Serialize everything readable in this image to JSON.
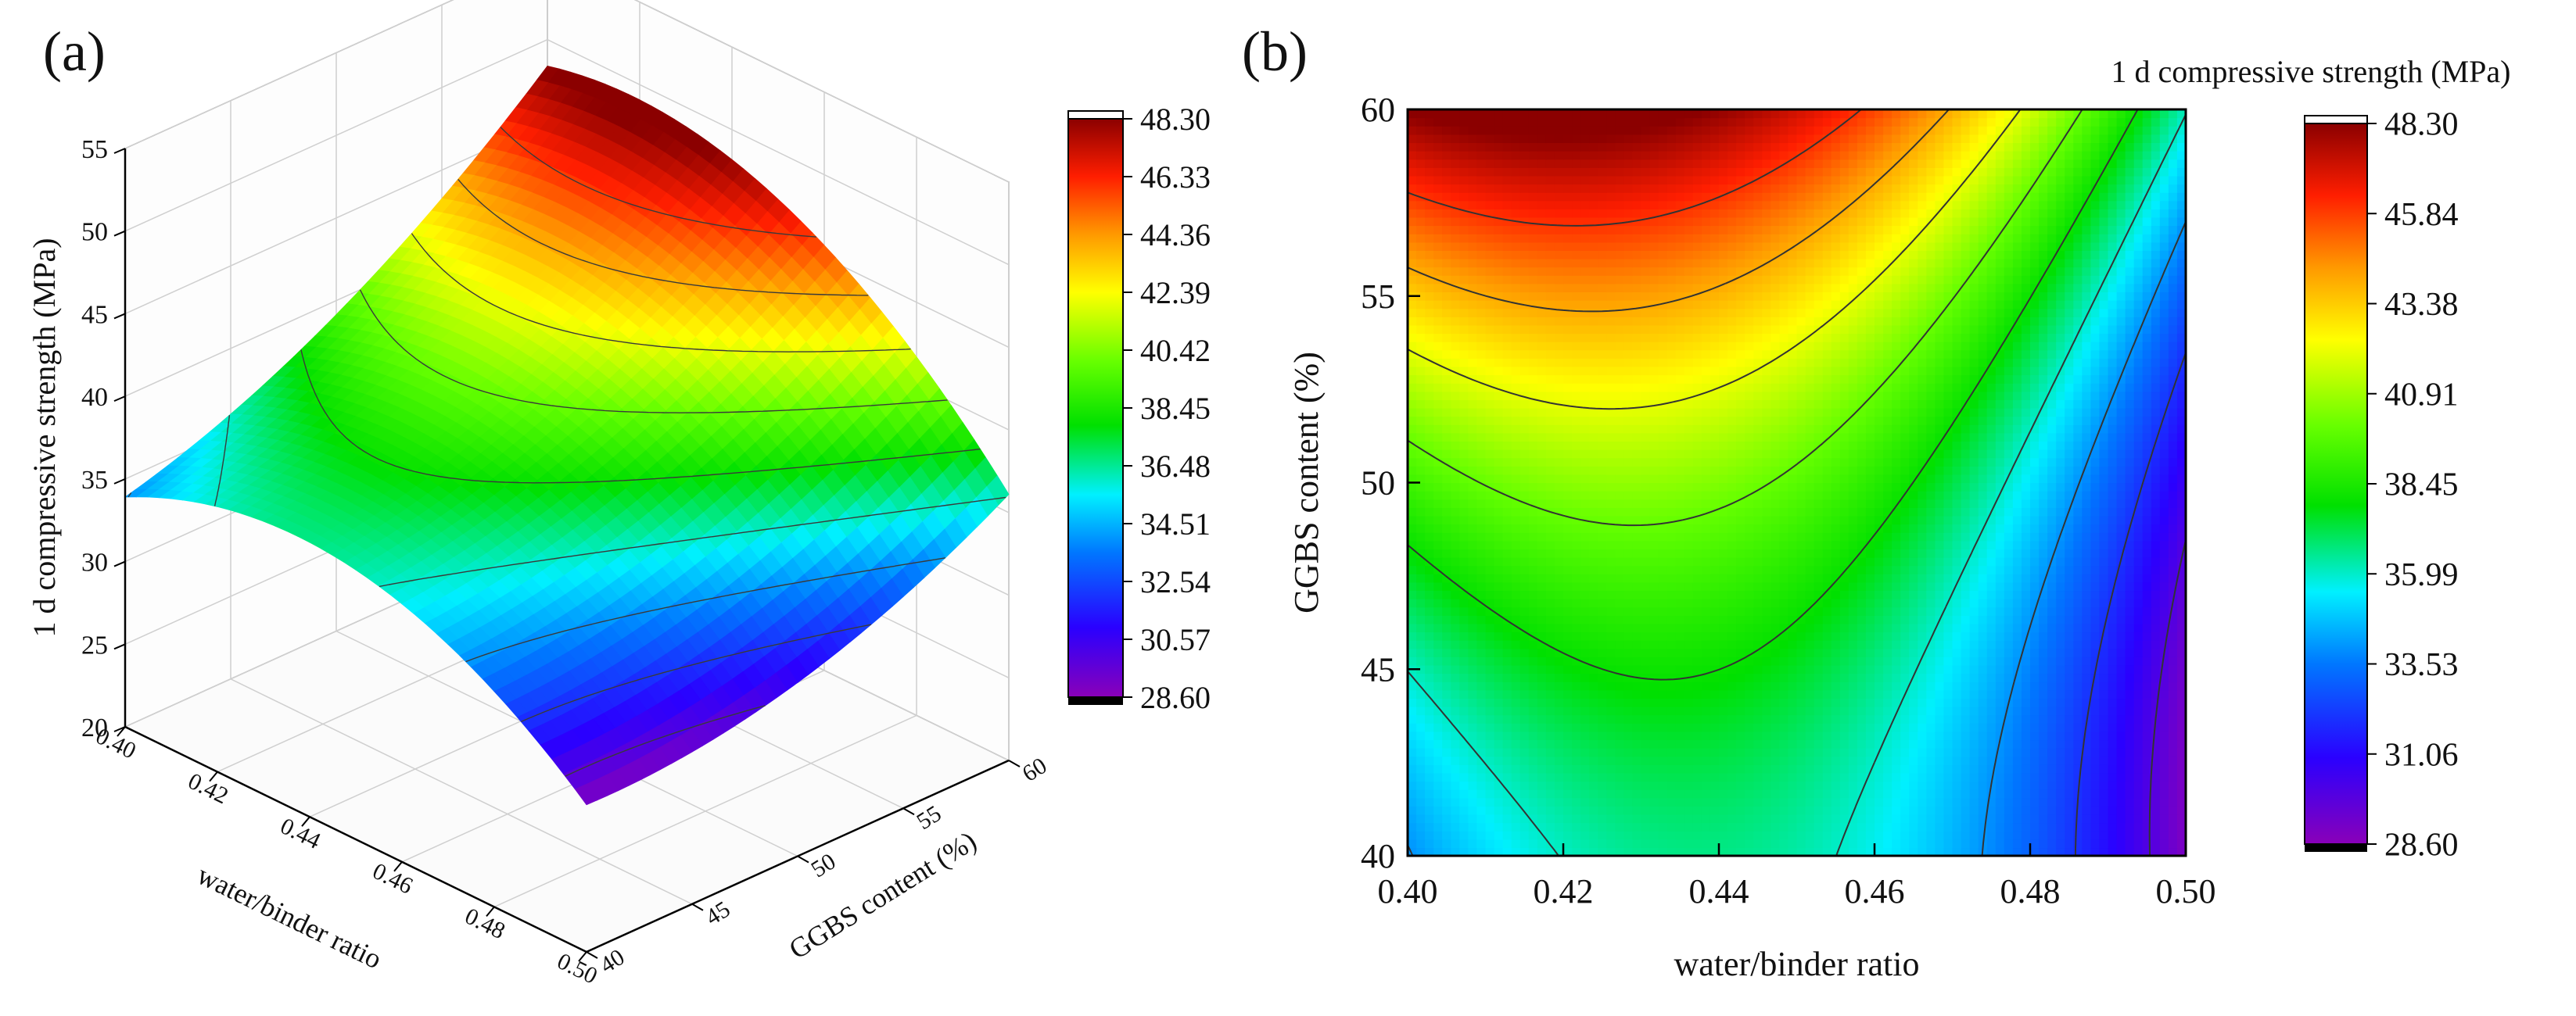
{
  "figure": {
    "panel_a_label": "(a)",
    "panel_b_label": "(b)"
  },
  "chart_data": [
    {
      "panel": "(a)",
      "type": "surface3d",
      "title": "",
      "zlabel": "1 d compressive strength (MPa)",
      "xlabel": "water/binder ratio",
      "ylabel": "GGBS content (%)",
      "xlim": [
        0.4,
        0.5
      ],
      "ylim": [
        40,
        60
      ],
      "zlim": [
        20,
        55
      ],
      "xticks": [
        "0.40",
        "0.42",
        "0.44",
        "0.46",
        "0.48",
        "0.50"
      ],
      "yticks": [
        "40",
        "45",
        "50",
        "55",
        "60"
      ],
      "zticks": [
        "20",
        "25",
        "30",
        "35",
        "40",
        "45",
        "50",
        "55"
      ],
      "colorbar": {
        "min": 28.6,
        "max": 48.3,
        "ticks": [
          "48.30",
          "46.33",
          "44.36",
          "42.39",
          "40.42",
          "38.45",
          "36.48",
          "34.51",
          "32.54",
          "30.57",
          "28.60"
        ]
      },
      "model": {
        "description": "quadratic response surface of 1 d strength vs water/binder ratio (x) and GGBS content (y)",
        "corner_values": {
          "x0.40_y40": 34.0,
          "x0.40_y60": 47.5,
          "x0.50_y40": 28.6,
          "x0.50_y60": 34.8
        },
        "interior_values": {
          "x0.43_y60": 48.3,
          "x0.44_y45": 38.5,
          "x0.45_y50": 40.5
        }
      }
    },
    {
      "panel": "(b)",
      "type": "contour",
      "title": "",
      "colorbar_title": "1 d compressive strength (MPa)",
      "xlabel": "water/binder ratio",
      "ylabel": "GGBS content (%)",
      "xlim": [
        0.4,
        0.5
      ],
      "ylim": [
        40,
        60
      ],
      "xticks": [
        "0.40",
        "0.42",
        "0.44",
        "0.46",
        "0.48",
        "0.50"
      ],
      "yticks": [
        "40",
        "45",
        "50",
        "55",
        "60"
      ],
      "contour_levels": [
        30.0,
        32.0,
        34.0,
        36.0,
        38.0,
        40.0,
        42.0,
        44.0,
        46.0
      ],
      "colorbar": {
        "min": 28.6,
        "max": 48.3,
        "ticks": [
          "48.30",
          "45.84",
          "43.38",
          "40.91",
          "38.45",
          "35.99",
          "33.53",
          "31.06",
          "28.60"
        ]
      }
    }
  ]
}
